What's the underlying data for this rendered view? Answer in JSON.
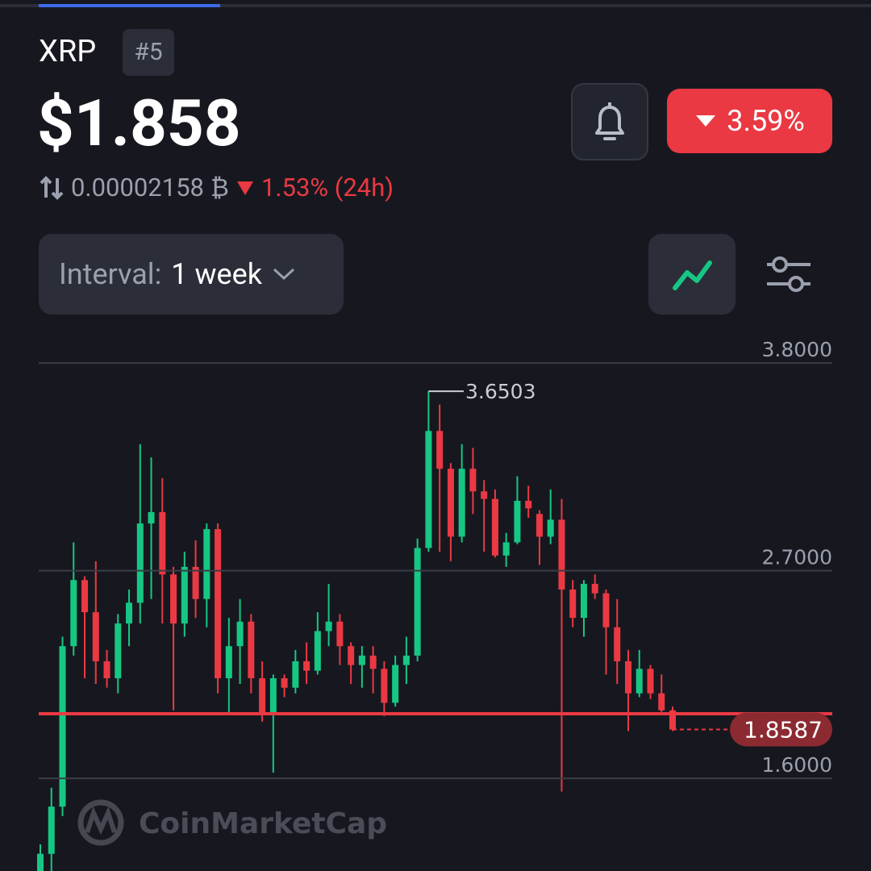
{
  "header": {
    "name": "XRP",
    "rank": "#5",
    "price": "$1.858",
    "btc_price": "0.00002158",
    "btc_symbol": "₿",
    "change_24h": "1.53% (24h)",
    "change_badge": "3.59%"
  },
  "controls": {
    "interval_label": "Interval:",
    "interval_value": "1 week"
  },
  "watermark": "CoinMarketCap",
  "chart_data": {
    "type": "candlestick",
    "up_color": "#16c784",
    "down_color": "#ea3943",
    "open": [
      1.1,
      1.2,
      1.45,
      2.3,
      2.65,
      2.48,
      2.22,
      2.13,
      2.42,
      2.53,
      2.95,
      3.01,
      2.68,
      2.42,
      2.72,
      2.55,
      2.92,
      2.13,
      2.3,
      2.43,
      2.13,
      1.95,
      2.13,
      2.08,
      2.22,
      2.17,
      2.38,
      2.43,
      2.3,
      2.2,
      2.25,
      2.18,
      2.0,
      2.2,
      2.25,
      2.82,
      3.44,
      3.24,
      2.88,
      3.24,
      3.12,
      3.08,
      2.78,
      2.85,
      3.07,
      3.0,
      2.88,
      2.97,
      2.6,
      2.45,
      2.63,
      2.58,
      2.4,
      2.22,
      2.05,
      2.18,
      2.05,
      1.96
    ],
    "high": [
      1.25,
      1.55,
      2.35,
      2.85,
      2.67,
      2.75,
      2.28,
      2.47,
      2.6,
      3.37,
      3.3,
      3.19,
      2.72,
      2.8,
      2.86,
      2.95,
      2.95,
      2.45,
      2.55,
      2.47,
      2.22,
      2.15,
      2.15,
      2.28,
      2.32,
      2.48,
      2.63,
      2.47,
      2.32,
      2.3,
      2.3,
      2.22,
      2.25,
      2.35,
      2.87,
      3.6503,
      3.58,
      3.27,
      3.37,
      3.35,
      3.18,
      3.13,
      2.9,
      3.2,
      3.15,
      3.02,
      3.13,
      3.08,
      2.65,
      2.65,
      2.68,
      2.6,
      2.55,
      2.28,
      2.28,
      2.2,
      2.15,
      1.98
    ],
    "low": [
      1.0,
      1.1,
      1.4,
      2.25,
      2.13,
      2.1,
      2.08,
      2.05,
      2.3,
      2.42,
      2.55,
      2.42,
      1.96,
      2.35,
      2.45,
      2.4,
      2.05,
      1.95,
      2.1,
      2.05,
      1.9,
      1.63,
      2.03,
      2.05,
      2.1,
      2.15,
      2.3,
      2.2,
      2.1,
      2.08,
      2.05,
      1.93,
      1.98,
      2.1,
      2.22,
      2.8,
      2.8,
      2.75,
      2.85,
      3.0,
      2.8,
      2.77,
      2.72,
      2.84,
      2.98,
      2.73,
      2.84,
      1.53,
      2.4,
      2.35,
      2.55,
      2.15,
      2.1,
      1.85,
      2.03,
      2.02,
      1.94,
      1.85
    ],
    "close": [
      1.2,
      1.45,
      2.3,
      2.65,
      2.48,
      2.22,
      2.13,
      2.42,
      2.53,
      2.95,
      3.01,
      2.68,
      2.42,
      2.72,
      2.55,
      2.92,
      2.13,
      2.3,
      2.43,
      2.13,
      1.95,
      2.13,
      2.08,
      2.22,
      2.17,
      2.38,
      2.43,
      2.3,
      2.2,
      2.25,
      2.18,
      2.0,
      2.2,
      2.25,
      2.82,
      3.44,
      3.24,
      2.88,
      3.24,
      3.12,
      3.08,
      2.78,
      2.85,
      3.07,
      3.03,
      2.88,
      2.97,
      2.6,
      2.45,
      2.63,
      2.58,
      2.4,
      2.22,
      2.05,
      2.18,
      2.05,
      1.96,
      1.8587
    ],
    "max_index": 35,
    "horizontal_line": 1.942,
    "horizontal_line_color": "#ea3943",
    "ylim": [
      1.109,
      4.014
    ],
    "yticks": [
      {
        "value": 1.6,
        "label": "1.6000"
      },
      {
        "value": 2.7,
        "label": "2.7000"
      },
      {
        "value": 3.8,
        "label": "3.8000"
      }
    ],
    "grid": true
  }
}
